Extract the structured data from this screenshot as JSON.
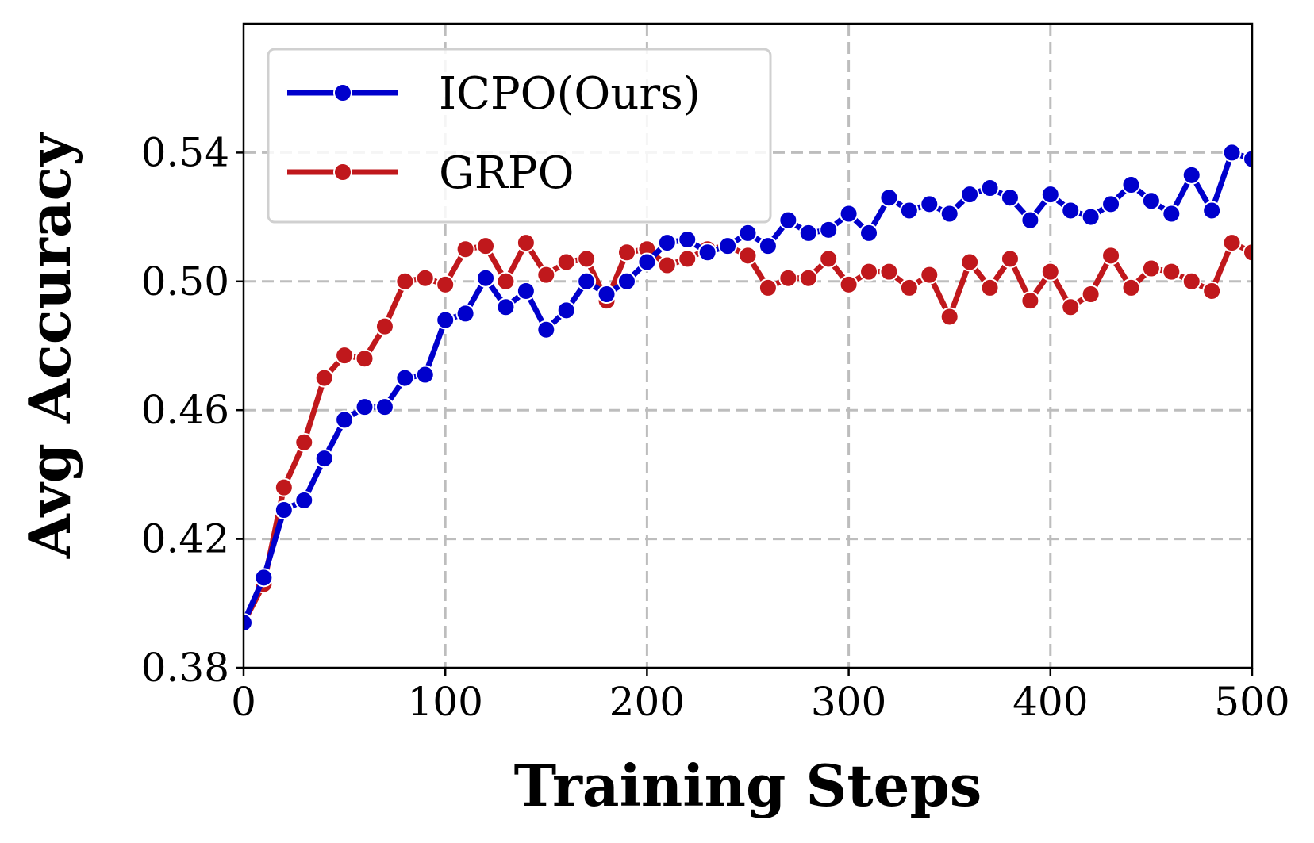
{
  "chart_data": {
    "type": "line",
    "xlabel": "Training Steps",
    "ylabel": "Avg Accuracy",
    "xlim": [
      0,
      500
    ],
    "ylim": [
      0.38,
      0.58
    ],
    "xticks": [
      0,
      100,
      200,
      300,
      400,
      500
    ],
    "xtick_labels": [
      "0",
      "100",
      "200",
      "300",
      "400",
      "500"
    ],
    "yticks": [
      0.38,
      0.42,
      0.46,
      0.5,
      0.54
    ],
    "ytick_labels": [
      "0.38",
      "0.42",
      "0.46",
      "0.50",
      "0.54"
    ],
    "grid": true,
    "legend_position": "top-left",
    "x": [
      0,
      10,
      20,
      30,
      40,
      50,
      60,
      70,
      80,
      90,
      100,
      110,
      120,
      130,
      140,
      150,
      160,
      170,
      180,
      190,
      200,
      210,
      220,
      230,
      240,
      250,
      260,
      270,
      280,
      290,
      300,
      310,
      320,
      330,
      340,
      350,
      360,
      370,
      380,
      390,
      400,
      410,
      420,
      430,
      440,
      450,
      460,
      470,
      480,
      490,
      500
    ],
    "series": [
      {
        "name": "ICPO(Ours)",
        "color": "#0000cc",
        "values": [
          0.394,
          0.408,
          0.429,
          0.432,
          0.445,
          0.457,
          0.461,
          0.461,
          0.47,
          0.471,
          0.488,
          0.49,
          0.501,
          0.492,
          0.497,
          0.485,
          0.491,
          0.5,
          0.496,
          0.5,
          0.506,
          0.512,
          0.513,
          0.509,
          0.511,
          0.515,
          0.511,
          0.519,
          0.515,
          0.516,
          0.521,
          0.515,
          0.526,
          0.522,
          0.524,
          0.521,
          0.527,
          0.529,
          0.526,
          0.519,
          0.527,
          0.522,
          0.52,
          0.524,
          0.53,
          0.525,
          0.521,
          0.533,
          0.522,
          0.54,
          0.538
        ]
      },
      {
        "name": "GRPO",
        "color": "#c0181c",
        "values": [
          0.394,
          0.406,
          0.436,
          0.45,
          0.47,
          0.477,
          0.476,
          0.486,
          0.5,
          0.501,
          0.499,
          0.51,
          0.511,
          0.5,
          0.512,
          0.502,
          0.506,
          0.507,
          0.494,
          0.509,
          0.51,
          0.505,
          0.507,
          0.51,
          0.511,
          0.508,
          0.498,
          0.501,
          0.501,
          0.507,
          0.499,
          0.503,
          0.503,
          0.498,
          0.502,
          0.489,
          0.506,
          0.498,
          0.507,
          0.494,
          0.503,
          0.492,
          0.496,
          0.508,
          0.498,
          0.504,
          0.503,
          0.5,
          0.497,
          0.512,
          0.509
        ]
      }
    ]
  }
}
